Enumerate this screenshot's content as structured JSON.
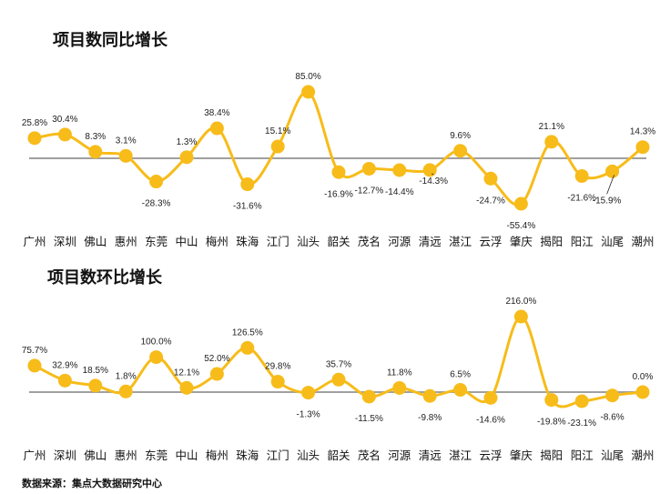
{
  "source": "数据来源：集点大数据研究中心",
  "colors": {
    "line": "#F7BC1A",
    "baseline": "#A0A0A0",
    "text": "#111111"
  },
  "chart_data": [
    {
      "type": "line",
      "title": "项目数同比增长",
      "unit": "%",
      "categories": [
        "广州",
        "深圳",
        "佛山",
        "惠州",
        "东莞",
        "中山",
        "梅州",
        "珠海",
        "江门",
        "汕头",
        "韶关",
        "茂名",
        "河源",
        "清远",
        "湛江",
        "云浮",
        "肇庆",
        "揭阳",
        "阳江",
        "汕尾",
        "潮州"
      ],
      "values": [
        25.8,
        30.4,
        8.3,
        3.1,
        -28.3,
        1.3,
        38.4,
        -31.6,
        15.1,
        85.0,
        -16.9,
        -12.7,
        -14.4,
        -14.3,
        9.6,
        -24.7,
        -55.4,
        21.1,
        -21.6,
        -15.9,
        14.3
      ],
      "labels": [
        "25.8%",
        "30.4%",
        "8.3%",
        "3.1%",
        "-28.3%",
        "1.3%",
        "38.4%",
        "-31.6%",
        "15.1%",
        "85.0%",
        "-16.9%",
        "-12.7%",
        "-14.4%",
        "-14.3%",
        "9.6%",
        "-24.7%",
        "-55.4%",
        "21.1%",
        "-21.6%",
        "-15.9%",
        "14.3%"
      ],
      "ylim": [
        -62,
        92
      ]
    },
    {
      "type": "line",
      "title": "项目数环比增长",
      "unit": "%",
      "categories": [
        "广州",
        "深圳",
        "佛山",
        "惠州",
        "东莞",
        "中山",
        "梅州",
        "珠海",
        "江门",
        "汕头",
        "韶关",
        "茂名",
        "河源",
        "清远",
        "湛江",
        "云浮",
        "肇庆",
        "揭阳",
        "阳江",
        "汕尾",
        "潮州"
      ],
      "values": [
        75.7,
        32.9,
        18.5,
        1.8,
        100.0,
        12.1,
        52.0,
        126.5,
        29.8,
        -1.3,
        35.7,
        -11.5,
        11.8,
        -9.8,
        6.5,
        -14.6,
        216.0,
        -19.8,
        -23.1,
        -8.6,
        0.0
      ],
      "labels": [
        "75.7%",
        "32.9%",
        "18.5%",
        "1.8%",
        "100.0%",
        "12.1%",
        "52.0%",
        "126.5%",
        "29.8%",
        "-1.3%",
        "35.7%",
        "-11.5%",
        "11.8%",
        "-9.8%",
        "6.5%",
        "-14.6%",
        "216.0%",
        "-19.8%",
        "-23.1%",
        "-8.6%",
        "0.0%"
      ],
      "ylim": [
        -30,
        230
      ]
    }
  ]
}
